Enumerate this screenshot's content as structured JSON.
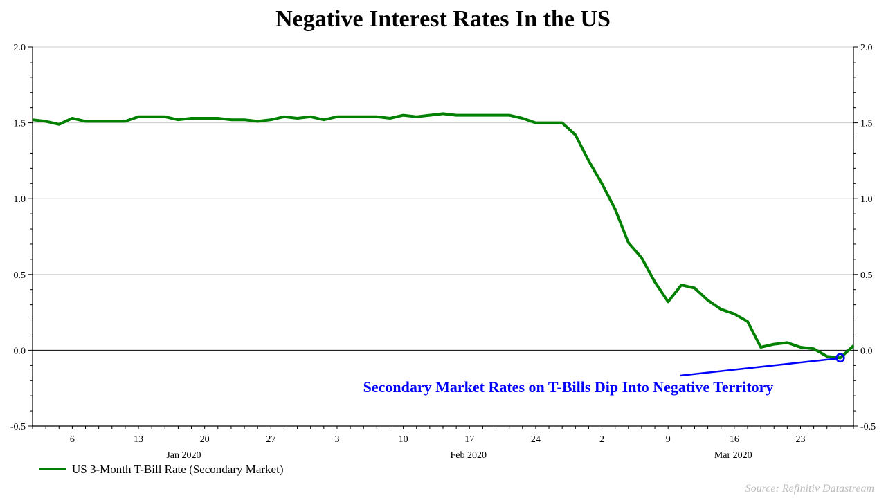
{
  "chart_data": {
    "type": "line",
    "title": "Negative Interest Rates In the US",
    "ylim": [
      -0.5,
      2.0
    ],
    "yticks": [
      "2.0",
      "1.5",
      "1.0",
      "0.5",
      "0.0",
      "-0.5"
    ],
    "ytick_values": [
      2.0,
      1.5,
      1.0,
      0.5,
      0.0,
      -0.5
    ],
    "grid": true,
    "legend_position": "bottom-left",
    "x_day_ticks": [
      {
        "date": "2020-01-06",
        "label": "6"
      },
      {
        "date": "2020-01-13",
        "label": "13"
      },
      {
        "date": "2020-01-20",
        "label": "20"
      },
      {
        "date": "2020-01-27",
        "label": "27"
      },
      {
        "date": "2020-02-03",
        "label": "3"
      },
      {
        "date": "2020-02-10",
        "label": "10"
      },
      {
        "date": "2020-02-17",
        "label": "17"
      },
      {
        "date": "2020-02-24",
        "label": "24"
      },
      {
        "date": "2020-03-02",
        "label": "2"
      },
      {
        "date": "2020-03-09",
        "label": "9"
      },
      {
        "date": "2020-03-16",
        "label": "16"
      },
      {
        "date": "2020-03-23",
        "label": "23"
      }
    ],
    "x_month_labels": [
      {
        "month": "2020-01",
        "label": "Jan 2020"
      },
      {
        "month": "2020-02",
        "label": "Feb 2020"
      },
      {
        "month": "2020-03",
        "label": "Mar 2020"
      }
    ],
    "x": [
      "2020-01-01",
      "2020-01-02",
      "2020-01-03",
      "2020-01-06",
      "2020-01-07",
      "2020-01-08",
      "2020-01-09",
      "2020-01-10",
      "2020-01-13",
      "2020-01-14",
      "2020-01-15",
      "2020-01-16",
      "2020-01-17",
      "2020-01-20",
      "2020-01-21",
      "2020-01-22",
      "2020-01-23",
      "2020-01-24",
      "2020-01-27",
      "2020-01-28",
      "2020-01-29",
      "2020-01-30",
      "2020-01-31",
      "2020-02-03",
      "2020-02-04",
      "2020-02-05",
      "2020-02-06",
      "2020-02-07",
      "2020-02-10",
      "2020-02-11",
      "2020-02-12",
      "2020-02-13",
      "2020-02-14",
      "2020-02-17",
      "2020-02-18",
      "2020-02-19",
      "2020-02-20",
      "2020-02-21",
      "2020-02-24",
      "2020-02-25",
      "2020-02-26",
      "2020-02-27",
      "2020-02-28",
      "2020-03-02",
      "2020-03-03",
      "2020-03-04",
      "2020-03-05",
      "2020-03-06",
      "2020-03-09",
      "2020-03-10",
      "2020-03-11",
      "2020-03-12",
      "2020-03-13",
      "2020-03-16",
      "2020-03-17",
      "2020-03-18",
      "2020-03-19",
      "2020-03-20",
      "2020-03-23",
      "2020-03-24",
      "2020-03-25",
      "2020-03-26",
      "2020-03-27"
    ],
    "series": [
      {
        "name": "US 3-Month T-Bill Rate (Secondary Market)",
        "color": "#008000",
        "values": [
          1.52,
          1.51,
          1.49,
          1.53,
          1.51,
          1.51,
          1.51,
          1.51,
          1.54,
          1.54,
          1.54,
          1.52,
          1.53,
          1.53,
          1.53,
          1.52,
          1.52,
          1.51,
          1.52,
          1.54,
          1.53,
          1.54,
          1.52,
          1.54,
          1.54,
          1.54,
          1.54,
          1.53,
          1.55,
          1.54,
          1.55,
          1.56,
          1.55,
          1.55,
          1.55,
          1.55,
          1.55,
          1.53,
          1.5,
          1.5,
          1.5,
          1.42,
          1.25,
          1.1,
          0.93,
          0.71,
          0.61,
          0.45,
          0.32,
          0.43,
          0.41,
          0.33,
          0.27,
          0.24,
          0.19,
          0.02,
          0.04,
          0.05,
          0.02,
          0.01,
          -0.04,
          -0.05,
          0.03
        ]
      }
    ],
    "annotation": {
      "text": "Secondary Market Rates on T-Bills Dip Into Negative Territory",
      "date": "2020-03-26",
      "value": -0.05,
      "color": "#0000ff"
    },
    "source": "Source: Refinitiv Datastream"
  }
}
